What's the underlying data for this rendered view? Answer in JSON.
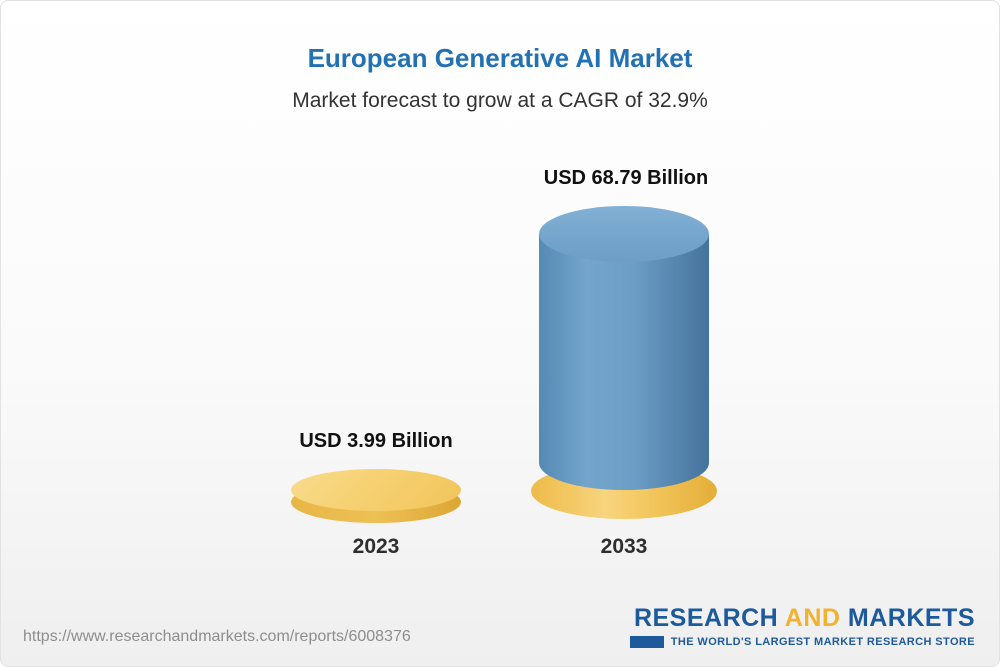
{
  "header": {
    "title": "European Generative AI Market",
    "subtitle": "Market forecast to grow at a CAGR of 32.9%"
  },
  "chart_data": {
    "type": "bar",
    "title": "European Generative AI Market",
    "subtitle": "Market forecast to grow at a CAGR of 32.9%",
    "cagr_percent": 32.9,
    "unit": "USD Billion",
    "categories": [
      "2023",
      "2033"
    ],
    "values": [
      3.99,
      68.79
    ],
    "value_labels": [
      "USD 3.99 Billion",
      "USD 68.79 Billion"
    ],
    "legend_position": "none",
    "grid": false,
    "colors": {
      "bar_2023": "#f2c65c",
      "bar_2033": "#6c9ec6",
      "bar_2033_base": "#f2c65c",
      "title": "#2271b3"
    }
  },
  "footer": {
    "url": "https://www.researchandmarkets.com/reports/6008376",
    "logo": {
      "part1": "RESEARCH ",
      "part2": "AND",
      "part3": " MARKETS",
      "tagline": "THE WORLD'S LARGEST MARKET RESEARCH STORE"
    }
  }
}
